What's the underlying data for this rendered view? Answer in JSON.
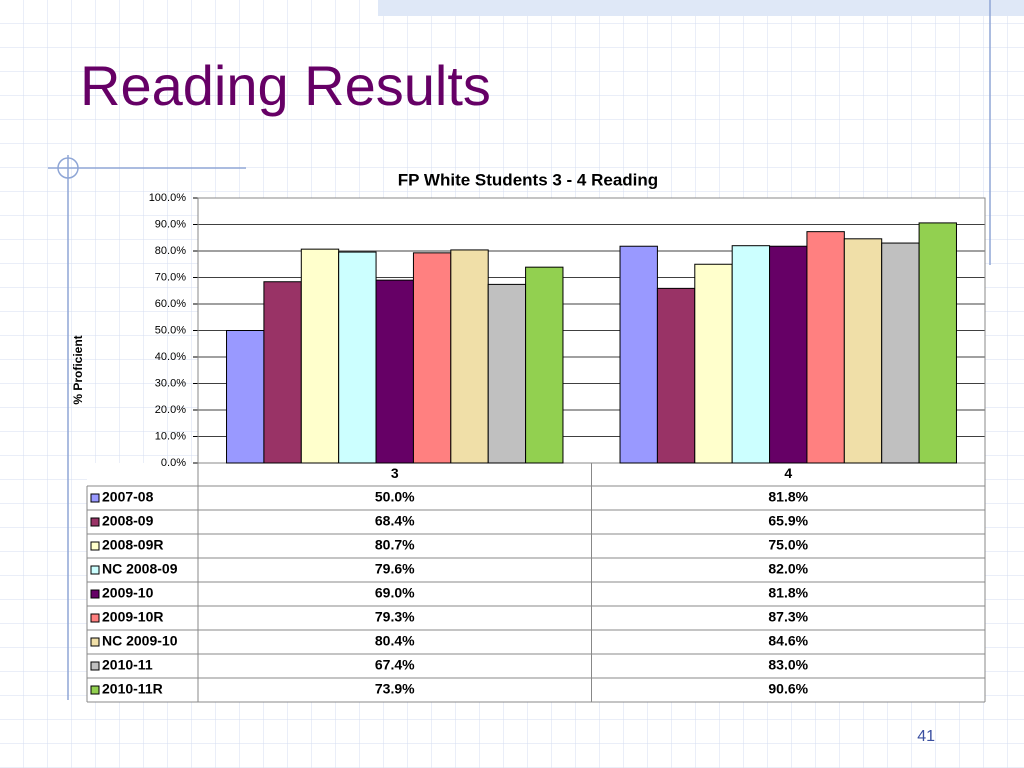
{
  "slide": {
    "title": "Reading Results",
    "page_number": "41"
  },
  "chart_data": {
    "type": "bar",
    "title": "FP White Students 3 - 4 Reading",
    "y_label": "% Proficient",
    "categories": [
      "3",
      "4"
    ],
    "ylim": [
      0,
      100
    ],
    "yticks": [
      {
        "value": 0,
        "label": "0.0%"
      },
      {
        "value": 10,
        "label": "10.0%"
      },
      {
        "value": 20,
        "label": "20.0%"
      },
      {
        "value": 30,
        "label": "30.0%"
      },
      {
        "value": 40,
        "label": "40.0%"
      },
      {
        "value": 50,
        "label": "50.0%"
      },
      {
        "value": 60,
        "label": "60.0%"
      },
      {
        "value": 70,
        "label": "70.0%"
      },
      {
        "value": 80,
        "label": "80.0%"
      },
      {
        "value": 90,
        "label": "90.0%"
      },
      {
        "value": 100,
        "label": "100.0%"
      }
    ],
    "grid": true,
    "series": [
      {
        "name": "2007-08",
        "color": "#9999ff",
        "values": [
          50.0,
          81.8
        ],
        "value_labels": [
          "50.0%",
          "81.8%"
        ]
      },
      {
        "name": "2008-09",
        "color": "#993366",
        "values": [
          68.4,
          65.9
        ],
        "value_labels": [
          "68.4%",
          "65.9%"
        ]
      },
      {
        "name": "2008-09R",
        "color": "#ffffcc",
        "values": [
          80.7,
          75.0
        ],
        "value_labels": [
          "80.7%",
          "75.0%"
        ]
      },
      {
        "name": "NC 2008-09",
        "color": "#ccffff",
        "values": [
          79.6,
          82.0
        ],
        "value_labels": [
          "79.6%",
          "82.0%"
        ]
      },
      {
        "name": "2009-10",
        "color": "#660066",
        "values": [
          69.0,
          81.8
        ],
        "value_labels": [
          "69.0%",
          "81.8%"
        ]
      },
      {
        "name": "2009-10R",
        "color": "#ff8080",
        "values": [
          79.3,
          87.3
        ],
        "value_labels": [
          "79.3%",
          "87.3%"
        ]
      },
      {
        "name": "NC 2009-10",
        "color": "#f0dfa8",
        "values": [
          80.4,
          84.6
        ],
        "value_labels": [
          "80.4%",
          "84.6%"
        ]
      },
      {
        "name": "2010-11",
        "color": "#c0c0c0",
        "values": [
          67.4,
          83.0
        ],
        "value_labels": [
          "67.4%",
          "83.0%"
        ]
      },
      {
        "name": "2010-11R",
        "color": "#92d050",
        "values": [
          73.9,
          90.6
        ],
        "value_labels": [
          "73.9%",
          "90.6%"
        ]
      }
    ]
  }
}
